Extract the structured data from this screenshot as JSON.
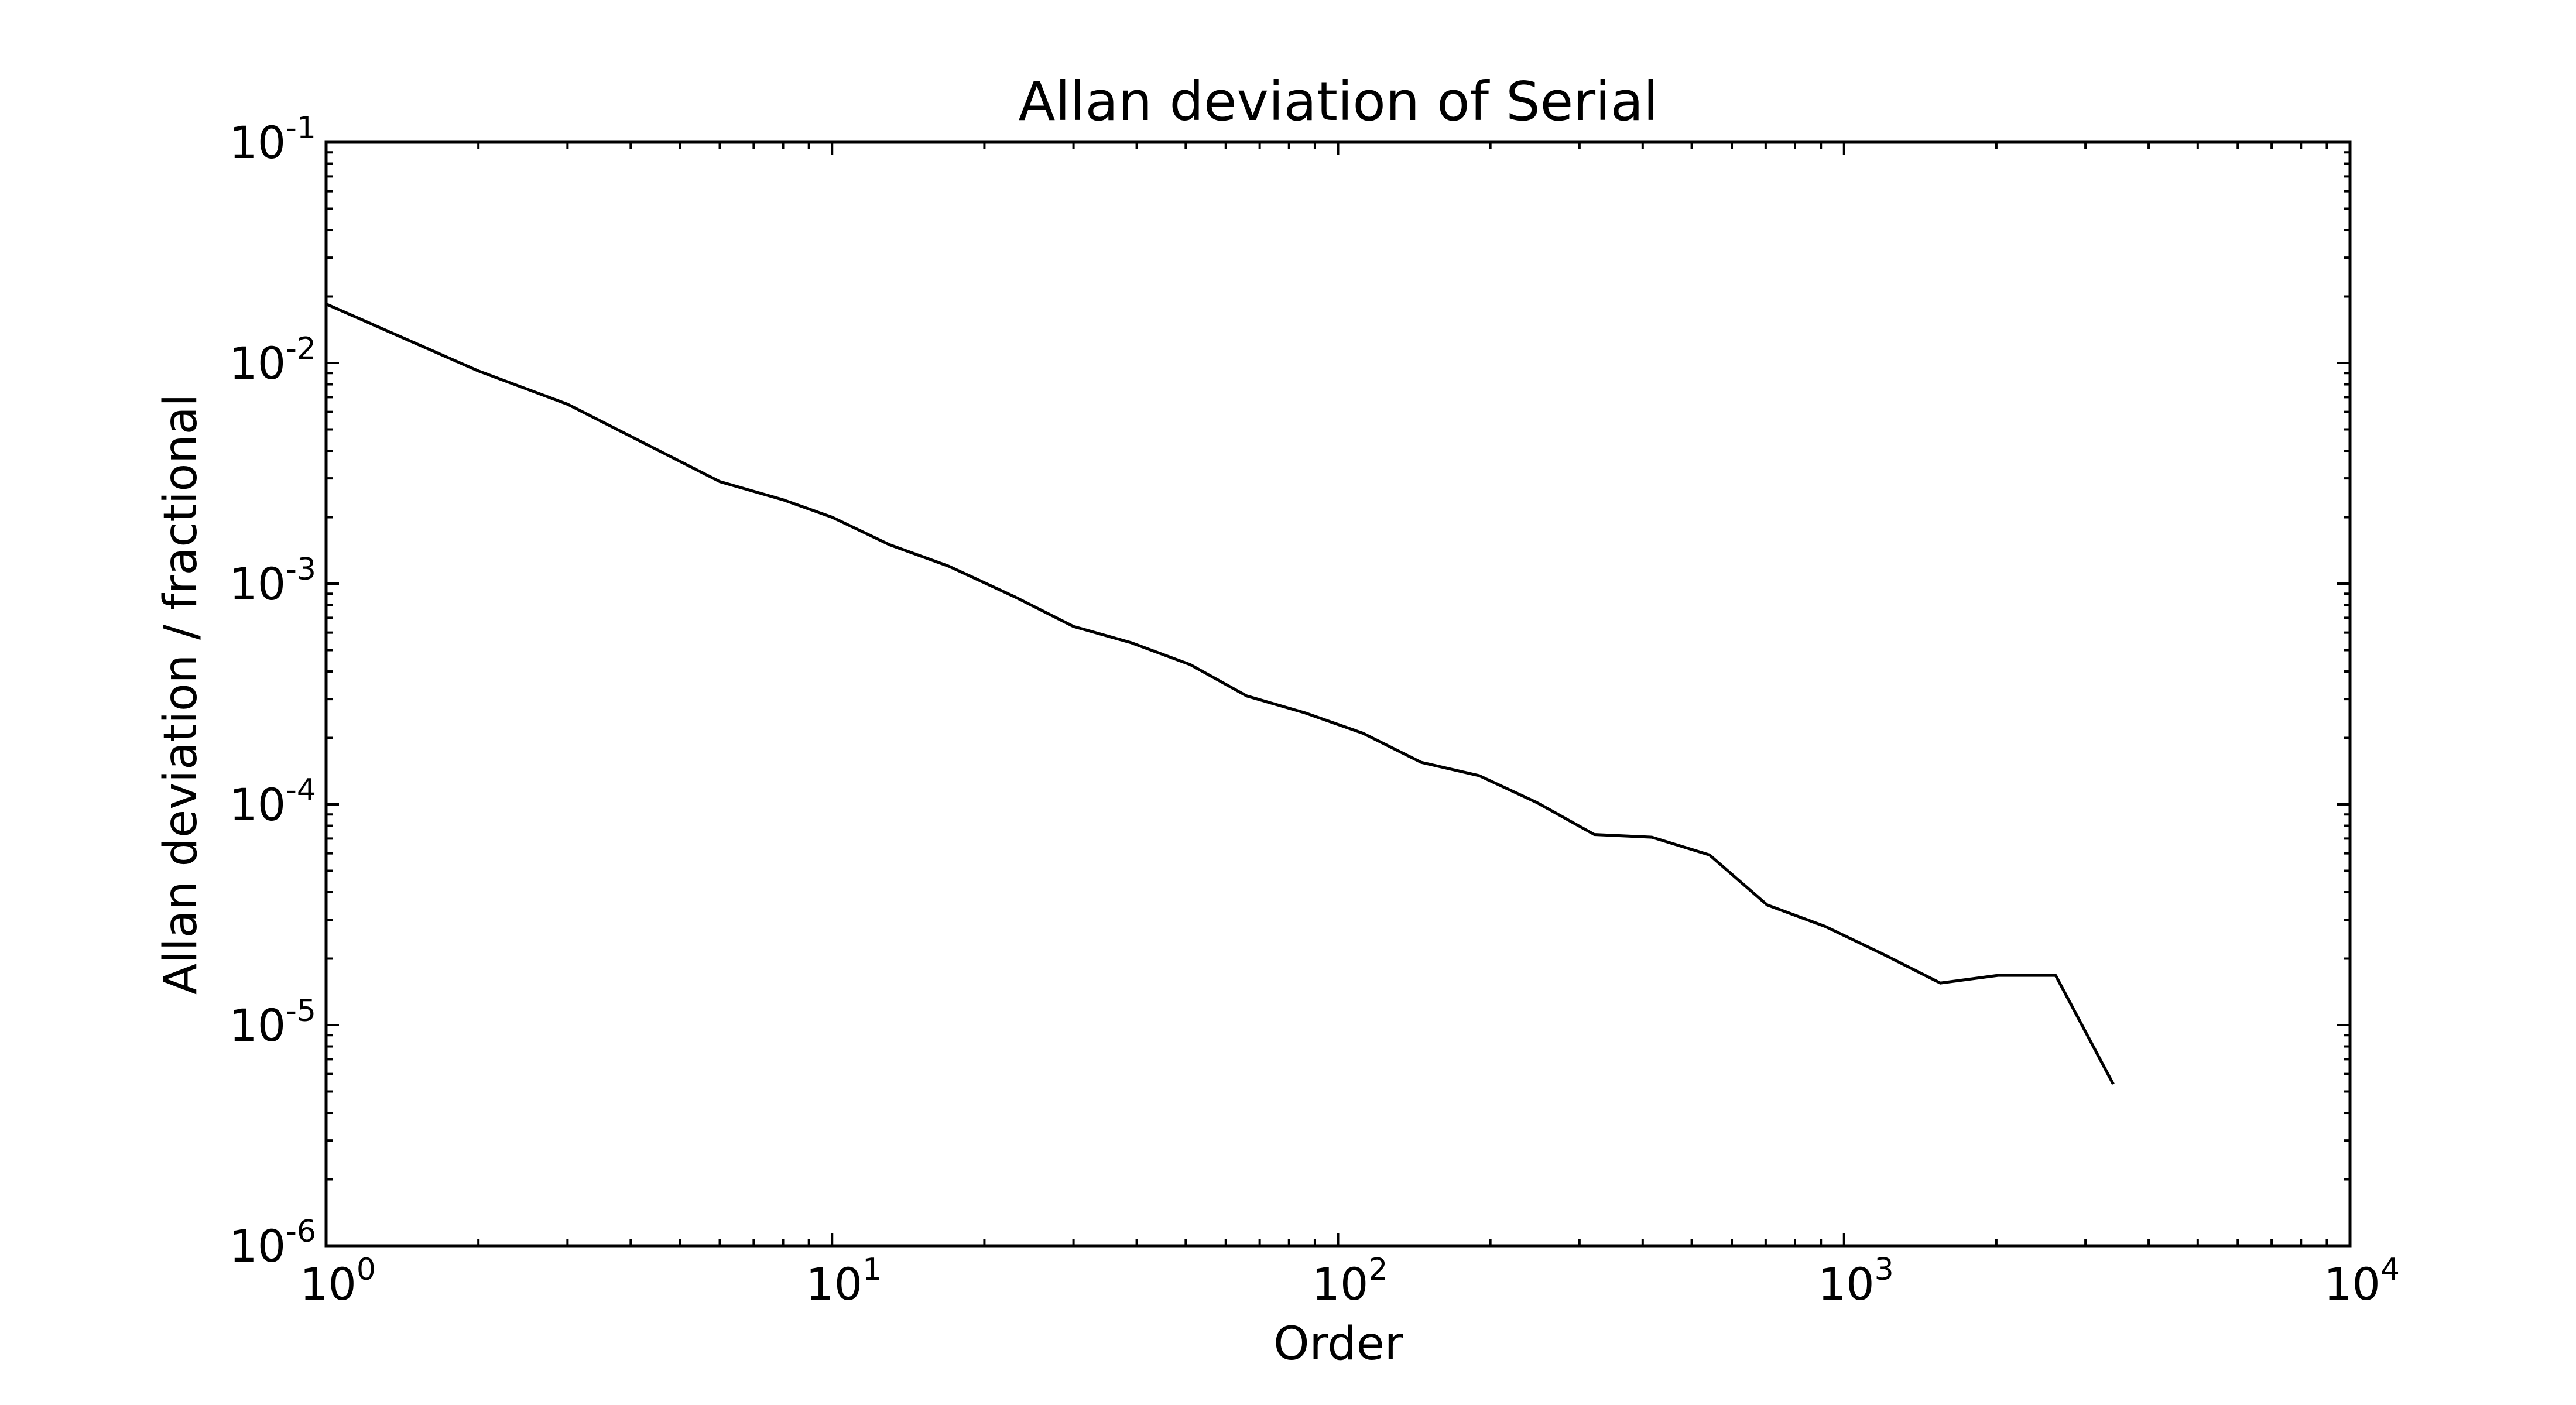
{
  "chart_data": {
    "type": "line",
    "title": "Allan deviation of Serial",
    "xlabel": "Order",
    "ylabel": "Allan deviation / fractional",
    "xscale": "log",
    "yscale": "log",
    "xlim": [
      1,
      10000
    ],
    "ylim": [
      1e-06,
      0.1
    ],
    "grid": false,
    "legend": "none",
    "line_color": "#000000",
    "x_ticks": [
      {
        "value": 1,
        "base": "10",
        "exp": "0"
      },
      {
        "value": 10,
        "base": "10",
        "exp": "1"
      },
      {
        "value": 100,
        "base": "10",
        "exp": "2"
      },
      {
        "value": 1000,
        "base": "10",
        "exp": "3"
      },
      {
        "value": 10000,
        "base": "10",
        "exp": "4"
      }
    ],
    "y_ticks": [
      {
        "value": 0.1,
        "base": "10",
        "exp": "-1"
      },
      {
        "value": 0.01,
        "base": "10",
        "exp": "-2"
      },
      {
        "value": 0.001,
        "base": "10",
        "exp": "-3"
      },
      {
        "value": 0.0001,
        "base": "10",
        "exp": "-4"
      },
      {
        "value": 1e-05,
        "base": "10",
        "exp": "-5"
      },
      {
        "value": 1e-06,
        "base": "10",
        "exp": "-6"
      }
    ],
    "series": [
      {
        "x": [
          1,
          2,
          3,
          6,
          8,
          10,
          13,
          17,
          23,
          30,
          39,
          51,
          66,
          86,
          112,
          146,
          190,
          247,
          321,
          417,
          542,
          705,
          917,
          1192,
          1550,
          2015,
          2619,
          3405
        ],
        "y": [
          0.0185,
          0.0092,
          0.0065,
          0.0029,
          0.0024,
          0.002,
          0.0015,
          0.0012,
          0.00087,
          0.00064,
          0.00054,
          0.00043,
          0.00031,
          0.00026,
          0.00021,
          0.000155,
          0.000135,
          0.000102,
          7.3e-05,
          7.1e-05,
          5.9e-05,
          3.5e-05,
          2.8e-05,
          2.1e-05,
          1.55e-05,
          1.68e-05,
          1.68e-05,
          5.4e-06
        ]
      }
    ]
  }
}
